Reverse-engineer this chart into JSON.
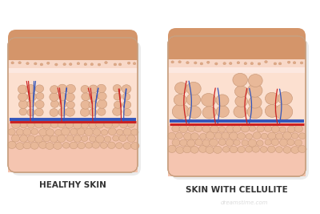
{
  "title_left": "HEALTHY SKIN",
  "title_right": "SKIN WITH CELLULITE",
  "bg_color": "#ffffff",
  "skin_top_color": "#d4956a",
  "skin_surface_color": "#f5cbb5",
  "dermis_color": "#fce8e0",
  "fat_layer_color": "#f8ddd0",
  "hypodermis_color": "#f5c8b8",
  "bottom_pink_color": "#f0b8a8",
  "fat_cell_fill": "#e8b898",
  "fat_cell_edge": "#c89878",
  "vein_color": "#3355bb",
  "artery_color": "#cc2222",
  "label_fontsize": 7.5,
  "label_color": "#333333",
  "watermark_color": "#cccccc",
  "block_shadow": "#e0e0e0"
}
